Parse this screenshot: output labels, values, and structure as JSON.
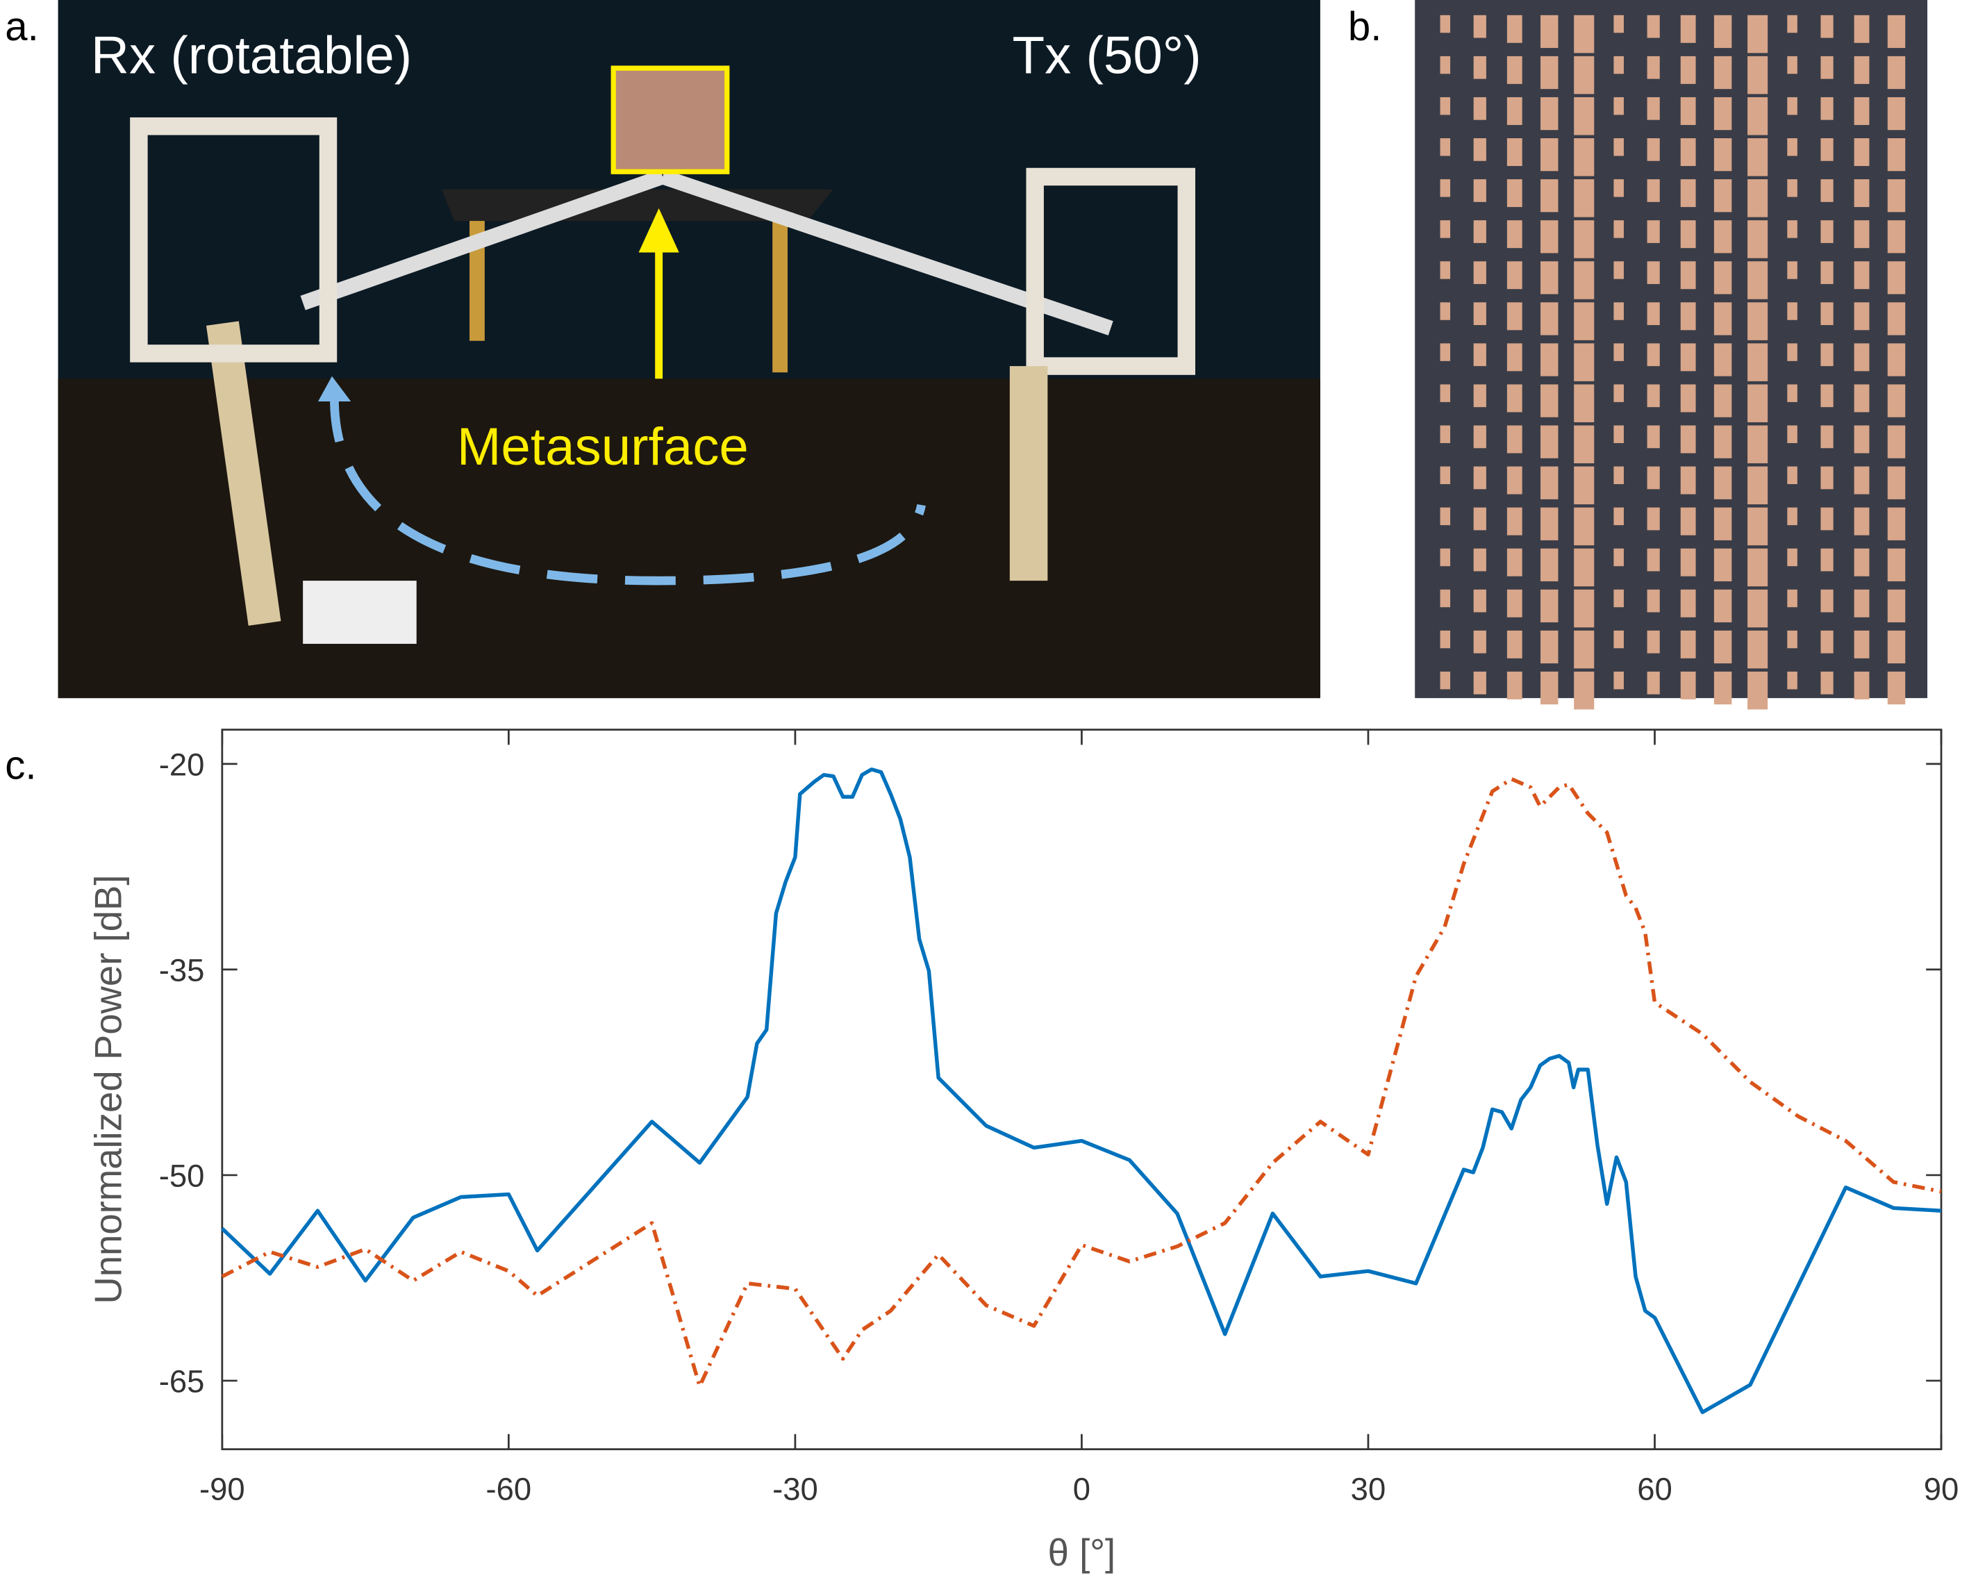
{
  "panel_labels": [
    "a.",
    "b.",
    "c."
  ],
  "photo_a": {
    "texts": [
      "Rx (rotatable)",
      "Tx (50°)",
      "Metasurface"
    ]
  },
  "chart_data": {
    "type": "line",
    "xlabel": "θ [°]",
    "ylabel": "Unnormalized Power [dB]",
    "xlim": [
      -90,
      90
    ],
    "xticks": [
      -90,
      -60,
      -30,
      0,
      30,
      60,
      90
    ],
    "ylim": [
      -70,
      -17.5
    ],
    "yticks": [
      -20,
      -35,
      -50,
      -65
    ],
    "series": [
      {
        "color": "#0072bd",
        "line_style": "solid",
        "x": [
          -90,
          -85,
          -80,
          -75,
          -70,
          -65,
          -60,
          -57,
          -45,
          -40,
          -35,
          -34,
          -33,
          -32,
          -31,
          -30,
          -29.5,
          -28,
          -27,
          -26,
          -25,
          -24,
          -23,
          -22,
          -21,
          -20,
          -19,
          -18,
          -17,
          -16,
          -15,
          -10,
          -5,
          0,
          5,
          10,
          15,
          20,
          25,
          30,
          35,
          40,
          41,
          42,
          43,
          44,
          45,
          46,
          47,
          48,
          49,
          50,
          51,
          51.5,
          52,
          53,
          54,
          55,
          56,
          57,
          58,
          59,
          60,
          65,
          70,
          80,
          85,
          90
        ],
        "values": [
          -53.9,
          -57.2,
          -52.6,
          -57.7,
          -53.1,
          -51.6,
          -51.4,
          -55.5,
          -46.1,
          -49.1,
          -44.3,
          -40.4,
          -39.4,
          -30.9,
          -28.6,
          -26.8,
          -22.2,
          -21.3,
          -20.8,
          -20.9,
          -22.4,
          -22.4,
          -20.8,
          -20.4,
          -20.6,
          -22.2,
          -24.0,
          -26.8,
          -32.8,
          -35.1,
          -42.9,
          -46.4,
          -48.0,
          -47.5,
          -48.9,
          -52.8,
          -61.6,
          -52.8,
          -57.4,
          -57.0,
          -57.9,
          -49.6,
          -49.8,
          -48.0,
          -45.2,
          -45.4,
          -46.6,
          -44.5,
          -43.6,
          -42.0,
          -41.5,
          -41.3,
          -41.8,
          -43.6,
          -42.3,
          -42.3,
          -47.8,
          -52.1,
          -48.7,
          -50.5,
          -57.4,
          -59.9,
          -60.4,
          -67.3,
          -65.3,
          -50.9,
          -52.4,
          -52.6
        ]
      },
      {
        "color": "#d95319",
        "line_style": "dashdot",
        "x": [
          -90,
          -85,
          -80,
          -75,
          -70,
          -65,
          -60,
          -57,
          -45,
          -40,
          -35,
          -30,
          -25,
          -23,
          -20,
          -15,
          -10,
          -5,
          0,
          5,
          10,
          15,
          20,
          25,
          30,
          35,
          38,
          40,
          43,
          45,
          47,
          48,
          50,
          51,
          53,
          55,
          57,
          58,
          59,
          60,
          65,
          70,
          75,
          80,
          85,
          90
        ],
        "values": [
          -57.4,
          -55.6,
          -56.7,
          -55.4,
          -57.7,
          -55.6,
          -57.0,
          -58.8,
          -53.5,
          -65.4,
          -57.9,
          -58.3,
          -63.4,
          -61.3,
          -59.9,
          -55.8,
          -59.5,
          -61.0,
          -55.1,
          -56.3,
          -55.2,
          -53.5,
          -49.1,
          -46.1,
          -48.5,
          -35.5,
          -31.9,
          -27.3,
          -22.0,
          -21.1,
          -21.7,
          -23.1,
          -21.7,
          -21.5,
          -23.6,
          -25.0,
          -29.6,
          -30.5,
          -32.3,
          -37.4,
          -39.7,
          -43.2,
          -45.7,
          -47.5,
          -50.5,
          -51.2
        ]
      }
    ]
  }
}
